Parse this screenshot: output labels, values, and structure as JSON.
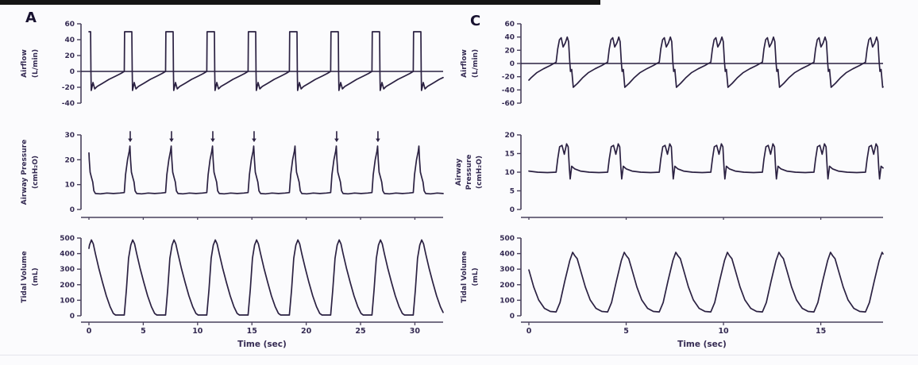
{
  "figure": {
    "background": "#fbfbfd",
    "top_bar_color": "#151515",
    "trace_color": "#2b2142",
    "axis_color": "#49415c",
    "text_color": "#342a52"
  },
  "chart_data": [
    {
      "panel_label": "A",
      "type": "line",
      "xlabel": "Time (sec)",
      "xlim": [
        0,
        32.6
      ],
      "x_ticks": [
        0,
        5,
        10,
        15,
        20,
        25,
        30
      ],
      "breath_starts": [
        -0.55,
        3.25,
        7.05,
        10.85,
        14.65,
        18.45,
        22.25,
        26.05,
        29.85
      ],
      "breath_period_sec": 3.8,
      "subplots": [
        {
          "name": "airflow",
          "ylabel_lines": [
            "Airflow",
            "(L/min)"
          ],
          "ylim": [
            -40,
            60
          ],
          "y_ticks": [
            -40,
            -20,
            0,
            20,
            40,
            60
          ],
          "zero_line": true,
          "cycle": [
            [
              0,
              0
            ],
            [
              0.03,
              50
            ],
            [
              0.7,
              50
            ],
            [
              0.73,
              0
            ],
            [
              0.76,
              -24
            ],
            [
              0.92,
              -14
            ],
            [
              1.08,
              -22
            ],
            [
              1.3,
              -19
            ],
            [
              1.8,
              -15
            ],
            [
              2.4,
              -10
            ],
            [
              3.0,
              -6
            ],
            [
              3.5,
              -2.5
            ],
            [
              3.8,
              0
            ]
          ]
        },
        {
          "name": "airway-pressure",
          "ylabel_lines": [
            "Airway Pressure",
            "(cmH₂O)"
          ],
          "ylim": [
            0,
            30
          ],
          "y_ticks": [
            0,
            10,
            20,
            30
          ],
          "zero_line": false,
          "cycle": [
            [
              0,
              6.8
            ],
            [
              0.12,
              14
            ],
            [
              0.3,
              20
            ],
            [
              0.46,
              23.5
            ],
            [
              0.52,
              25.5
            ],
            [
              0.58,
              20
            ],
            [
              0.66,
              15
            ],
            [
              0.78,
              13
            ],
            [
              0.9,
              11
            ],
            [
              1.0,
              7.5
            ],
            [
              1.15,
              6.4
            ],
            [
              1.6,
              6.3
            ],
            [
              2.2,
              6.6
            ],
            [
              2.8,
              6.4
            ],
            [
              3.4,
              6.6
            ],
            [
              3.8,
              6.8
            ]
          ],
          "annotations": {
            "type": "down-arrow",
            "times": [
              3.8,
              7.6,
              11.4,
              15.2,
              22.8,
              26.6
            ],
            "from": 31.5,
            "to": 28.2
          }
        },
        {
          "name": "tidal-volume",
          "ylabel_lines": [
            "Tidal Volume",
            "(mL)"
          ],
          "ylim": [
            0,
            500
          ],
          "y_ticks": [
            0,
            100,
            200,
            300,
            400,
            500
          ],
          "zero_line": false,
          "show_x_labels": true,
          "cycle": [
            [
              0,
              5
            ],
            [
              0.2,
              170
            ],
            [
              0.4,
              370
            ],
            [
              0.6,
              455
            ],
            [
              0.78,
              488
            ],
            [
              0.95,
              462
            ],
            [
              1.15,
              398
            ],
            [
              1.45,
              308
            ],
            [
              1.8,
              215
            ],
            [
              2.15,
              128
            ],
            [
              2.5,
              58
            ],
            [
              2.8,
              15
            ],
            [
              3.0,
              5
            ],
            [
              3.8,
              5
            ]
          ]
        }
      ]
    },
    {
      "panel_label": "C",
      "type": "line",
      "xlabel": "Time (sec)",
      "xlim": [
        0,
        18.2
      ],
      "x_ticks": [
        0,
        5,
        10,
        15
      ],
      "breath_starts": [
        -1.25,
        1.4,
        4.05,
        6.7,
        9.35,
        12.0,
        14.65,
        17.3
      ],
      "breath_period_sec": 2.65,
      "subplots": [
        {
          "name": "airflow",
          "ylabel_lines": [
            "Airflow",
            "(L/min)"
          ],
          "ylim": [
            -60,
            60
          ],
          "y_ticks": [
            -60,
            -40,
            -20,
            0,
            20,
            40,
            60
          ],
          "zero_line": true,
          "cycle": [
            [
              0,
              2
            ],
            [
              0.08,
              22
            ],
            [
              0.17,
              36
            ],
            [
              0.26,
              39
            ],
            [
              0.36,
              25
            ],
            [
              0.47,
              31
            ],
            [
              0.57,
              40
            ],
            [
              0.64,
              33
            ],
            [
              0.7,
              2
            ],
            [
              0.74,
              -12
            ],
            [
              0.8,
              -9
            ],
            [
              0.88,
              -36
            ],
            [
              1.1,
              -30
            ],
            [
              1.35,
              -22
            ],
            [
              1.65,
              -14
            ],
            [
              2.0,
              -8
            ],
            [
              2.35,
              -3
            ],
            [
              2.65,
              2
            ]
          ]
        },
        {
          "name": "airway-pressure",
          "ylabel_lines": [
            "Airway",
            "Pressure",
            "(cmH₂O)"
          ],
          "ylim": [
            0,
            20
          ],
          "y_ticks": [
            0,
            5,
            10,
            15,
            20
          ],
          "zero_line": false,
          "cycle": [
            [
              0,
              10
            ],
            [
              0.08,
              13.5
            ],
            [
              0.18,
              16.8
            ],
            [
              0.3,
              17.2
            ],
            [
              0.42,
              14.8
            ],
            [
              0.54,
              17.6
            ],
            [
              0.62,
              16.8
            ],
            [
              0.68,
              11
            ],
            [
              0.72,
              8.2
            ],
            [
              0.8,
              11.6
            ],
            [
              0.95,
              10.9
            ],
            [
              1.25,
              10.3
            ],
            [
              1.7,
              10
            ],
            [
              2.2,
              9.9
            ],
            [
              2.65,
              10
            ]
          ]
        },
        {
          "name": "tidal-volume",
          "ylabel_lines": [
            "Tidal Volume",
            "(mL)"
          ],
          "ylim": [
            0,
            500
          ],
          "y_ticks": [
            0,
            100,
            200,
            300,
            400,
            500
          ],
          "zero_line": false,
          "show_x_labels": true,
          "cycle": [
            [
              0,
              25
            ],
            [
              0.2,
              85
            ],
            [
              0.45,
              225
            ],
            [
              0.7,
              355
            ],
            [
              0.85,
              408
            ],
            [
              0.95,
              388
            ],
            [
              1.08,
              368
            ],
            [
              1.25,
              295
            ],
            [
              1.5,
              185
            ],
            [
              1.75,
              102
            ],
            [
              2.05,
              48
            ],
            [
              2.35,
              28
            ],
            [
              2.65,
              25
            ]
          ]
        }
      ]
    }
  ]
}
